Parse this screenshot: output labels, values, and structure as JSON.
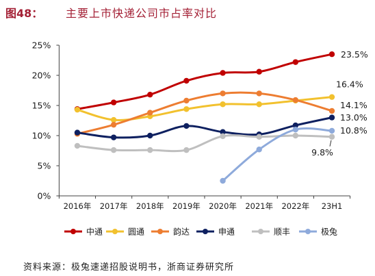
{
  "figure_label": "图48：",
  "source": "资料来源：极兔速递招股说明书，浙商证券研究所",
  "colors": {
    "title": "#a31f34",
    "axis": "#404040"
  },
  "chart_data": {
    "type": "line",
    "title": "主要上市快递公司市占率对比",
    "xlabel": "",
    "ylabel": "",
    "categories": [
      "2016年",
      "2017年",
      "2018年",
      "2019年",
      "2020年",
      "2021年",
      "2022年",
      "23H1"
    ],
    "ylim": [
      0,
      25
    ],
    "yticks": [
      0,
      5,
      10,
      15,
      20,
      25
    ],
    "ytick_labels": [
      "0%",
      "5%",
      "10%",
      "15%",
      "20%",
      "25%"
    ],
    "grid": false,
    "smooth": true,
    "legend": "bottom",
    "series": [
      {
        "name": "中通",
        "color": "#c00000",
        "values": [
          14.4,
          15.5,
          16.8,
          19.1,
          20.4,
          20.6,
          22.2,
          23.5
        ],
        "end_label": "23.5%"
      },
      {
        "name": "圆通",
        "color": "#f2c12e",
        "values": [
          14.3,
          12.6,
          13.2,
          14.4,
          15.2,
          15.2,
          15.8,
          16.4
        ],
        "end_label": "16.4%"
      },
      {
        "name": "韵达",
        "color": "#ed7d31",
        "values": [
          10.3,
          11.8,
          13.8,
          15.8,
          17.0,
          17.0,
          15.9,
          14.1
        ],
        "end_label": "14.1%"
      },
      {
        "name": "申通",
        "color": "#0e2060",
        "values": [
          10.5,
          9.7,
          10.0,
          11.6,
          10.6,
          10.2,
          11.7,
          13.0
        ],
        "end_label": "13.0%"
      },
      {
        "name": "顺丰",
        "color": "#bfbfbf",
        "values": [
          8.3,
          7.6,
          7.6,
          7.6,
          9.9,
          9.8,
          10.0,
          9.8
        ],
        "end_label": "9.8%"
      },
      {
        "name": "极兔",
        "color": "#8eaadb",
        "values": [
          null,
          null,
          null,
          null,
          2.5,
          7.7,
          11.0,
          10.8
        ],
        "end_label": "10.8%"
      }
    ]
  }
}
